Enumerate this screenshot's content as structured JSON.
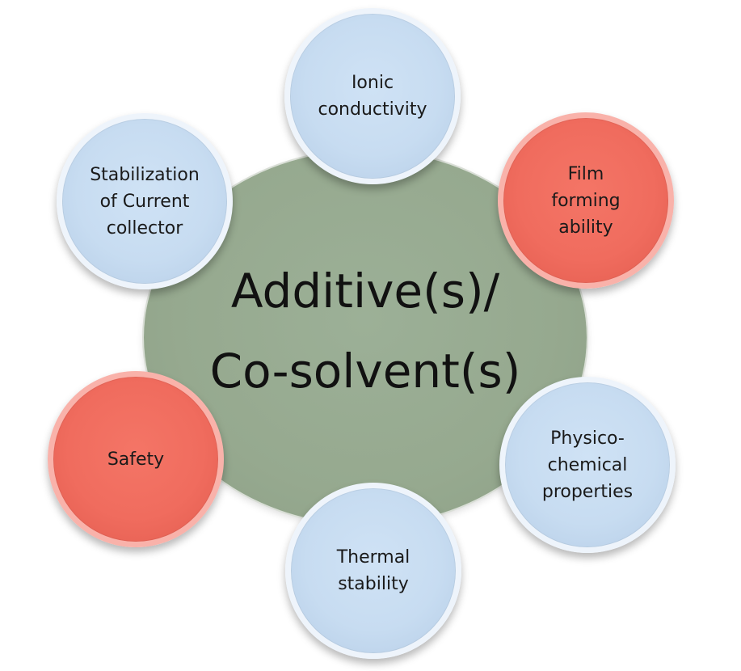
{
  "hub": {
    "line1": "Additive(s)/",
    "line2": "Co-solvent(s)"
  },
  "nodes": {
    "ionic": {
      "text": "Ionic\nconductivity",
      "color": "#c7dcf1"
    },
    "film": {
      "text": "Film\nforming\nability",
      "color": "#f06c5e"
    },
    "physico": {
      "text": "Physico-\nchemical\nproperties",
      "color": "#c7dcf1"
    },
    "thermal": {
      "text": "Thermal\nstability",
      "color": "#c7dcf1"
    },
    "safety": {
      "text": "Safety",
      "color": "#f06c5e"
    },
    "stabilization": {
      "text": "Stabilization\nof Current\ncollector",
      "color": "#c7dcf1"
    }
  },
  "colors": {
    "hub": "#96a98f",
    "blue_node": "#c7dcf1",
    "red_node": "#f06c5e"
  }
}
